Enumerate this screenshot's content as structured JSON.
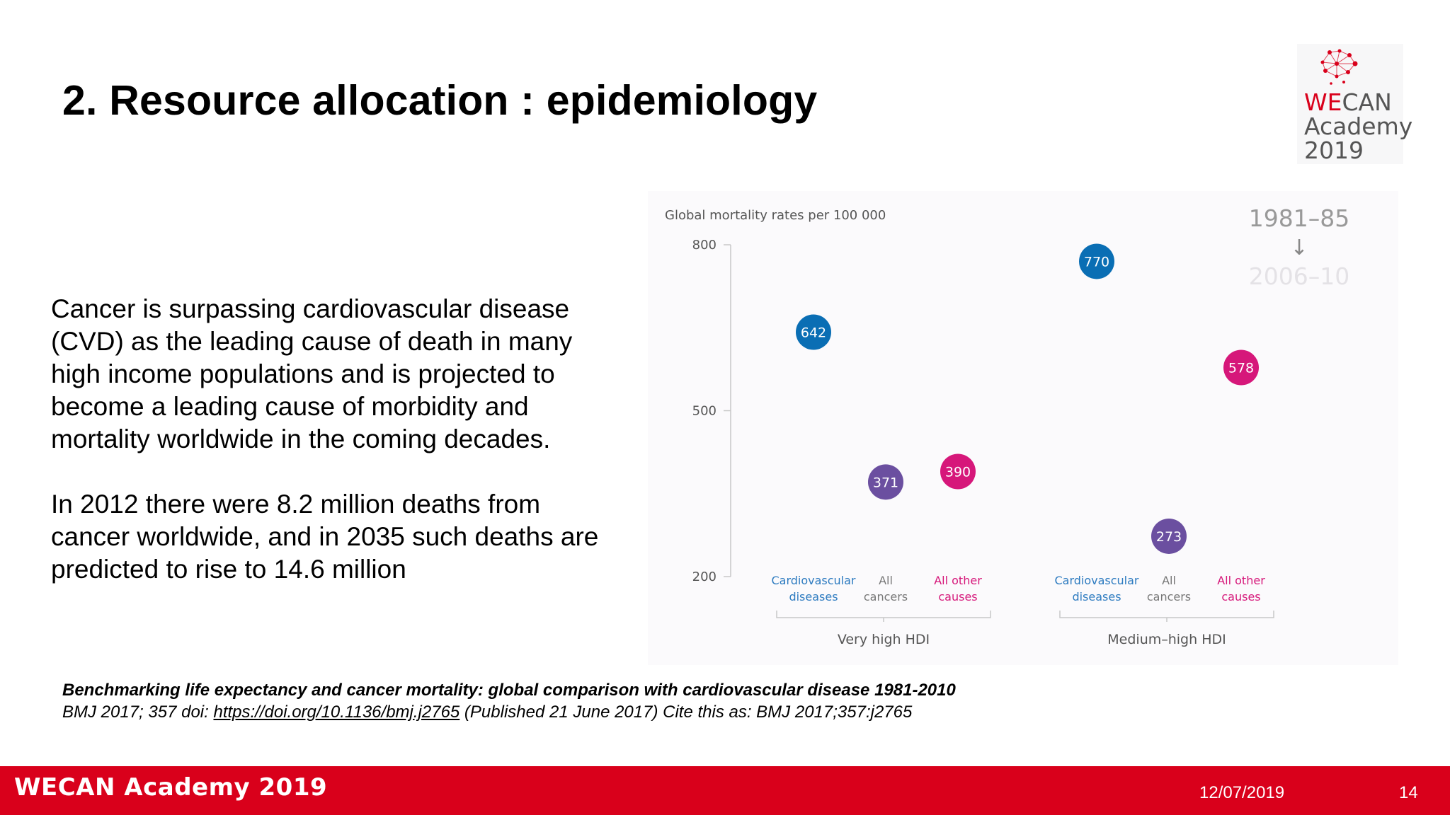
{
  "slide": {
    "title": "2. Resource allocation : epidemiology",
    "paragraphs": [
      "Cancer is surpassing cardiovascular disease (CVD) as the leading cause of death in many high income populations and is projected to become a leading cause of morbidity and mortality worldwide in the coming decades.",
      "In 2012 there were 8.2 million deaths from cancer worldwide, and in 2035 such deaths are predicted to rise to 14.6 million"
    ]
  },
  "logo": {
    "line1_red": "WE",
    "line1_rest": "CAN",
    "line2": "Academy",
    "line3": "2019",
    "color": "#d9001b"
  },
  "citation": {
    "title": "Benchmarking life expectancy and cancer mortality: global comparison with cardiovascular disease 1981-2010",
    "prefix": "BMJ 2017; 357 doi: ",
    "link": "https://doi.org/10.1136/bmj.j2765",
    "suffix": " (Published 21 June 2017) Cite this as: BMJ 2017;357:j2765"
  },
  "footer": {
    "brand": "WECAN Academy 2019",
    "date": "12/07/2019",
    "page": "14",
    "color": "#d9001b"
  },
  "chart_data": {
    "type": "scatter",
    "ylabel": "Global mortality rates per 100 000",
    "yticks": [
      800,
      500,
      200
    ],
    "ylim": [
      200,
      800
    ],
    "legend": {
      "period_start": "1981–85",
      "arrow": "↓",
      "period_end": "2006–10",
      "placement": "top-right"
    },
    "groups": [
      {
        "name": "Very high HDI",
        "categories": [
          {
            "label": [
              "Cardiovascular",
              "diseases"
            ],
            "value": 642,
            "color": "#0a6eb4"
          },
          {
            "label": [
              "All",
              "cancers"
            ],
            "value": 371,
            "color": "#6b4fa0"
          },
          {
            "label": [
              "All other",
              "causes"
            ],
            "value": 390,
            "color": "#d6177a"
          }
        ]
      },
      {
        "name": "Medium–high HDI",
        "categories": [
          {
            "label": [
              "Cardiovascular",
              "diseases"
            ],
            "value": 770,
            "color": "#0a6eb4"
          },
          {
            "label": [
              "All",
              "cancers"
            ],
            "value": 273,
            "color": "#6b4fa0"
          },
          {
            "label": [
              "All other",
              "causes"
            ],
            "value": 578,
            "color": "#d6177a"
          }
        ]
      }
    ]
  }
}
